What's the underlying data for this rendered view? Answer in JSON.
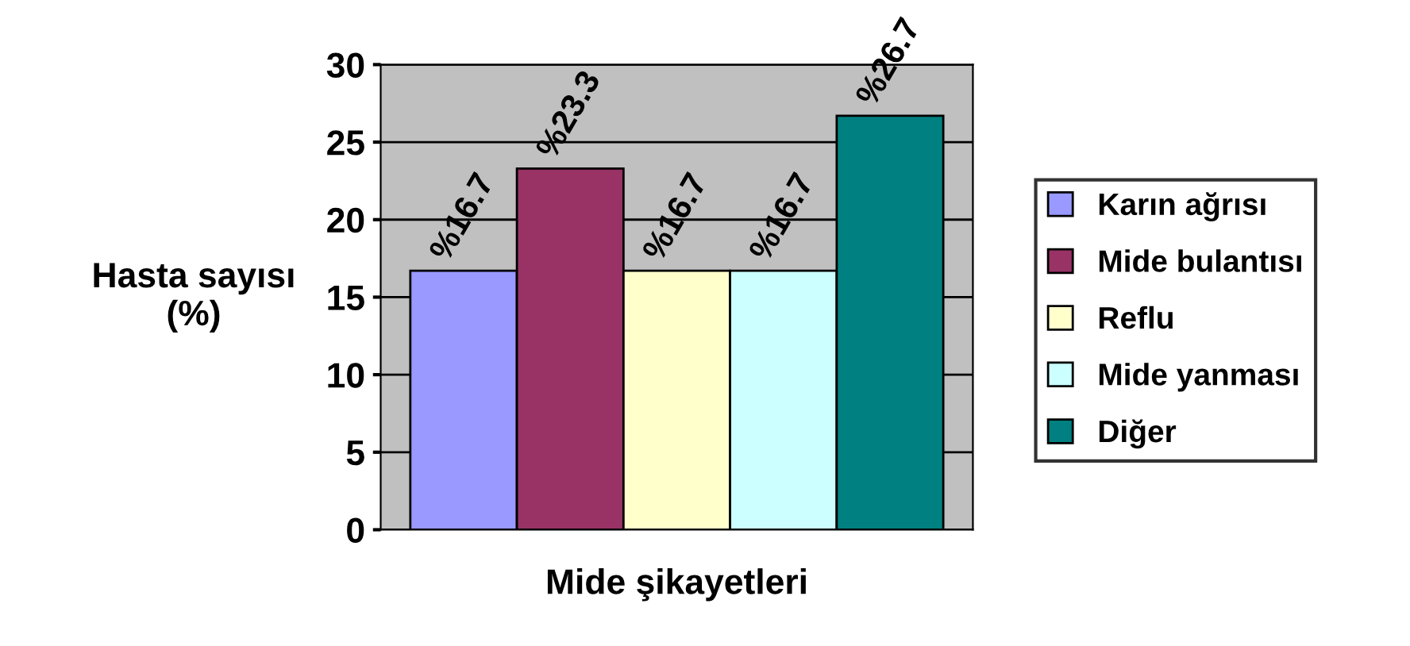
{
  "chart_data": {
    "type": "bar",
    "xlabel": "Mide şikayetleri",
    "ylabel": "Hasta sayısı\n(%)",
    "categories": [
      null
    ],
    "ylim": [
      0,
      30
    ],
    "yticks": [
      0,
      5,
      10,
      15,
      20,
      25,
      30
    ],
    "grid": "y",
    "legend": "right",
    "series": [
      {
        "name": "Karın ağrısı",
        "color": "#9999ff",
        "values": [
          16.7
        ],
        "value_labels": [
          "%16.7"
        ]
      },
      {
        "name": "Mide bulantısı",
        "color": "#993366",
        "values": [
          23.3
        ],
        "value_labels": [
          "%23.3"
        ]
      },
      {
        "name": "Reflu",
        "color": "#ffffcc",
        "values": [
          16.7
        ],
        "value_labels": [
          "%16.7"
        ]
      },
      {
        "name": "Mide yanması",
        "color": "#ccffff",
        "values": [
          16.7
        ],
        "value_labels": [
          "%16.7"
        ]
      },
      {
        "name": "Diğer",
        "color": "#008080",
        "values": [
          26.7
        ],
        "value_labels": [
          "%26.7"
        ]
      }
    ]
  }
}
